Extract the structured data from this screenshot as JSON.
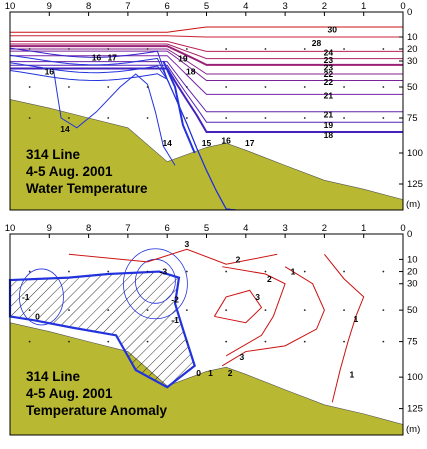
{
  "colors": {
    "terrain": "#b8b832",
    "cold": "#2233dd",
    "warm": "#cc1111",
    "frame": "#000000"
  },
  "chart_data": [
    {
      "type": "contour",
      "title_lines": [
        "314 Line",
        "4-5 Aug. 2001",
        "Water Temperature"
      ],
      "x_ticks": [
        "10",
        "9",
        "8",
        "7",
        "6",
        "5",
        "4",
        "3",
        "2",
        "1",
        "0"
      ],
      "x_tick_values": [
        10,
        9,
        8,
        7,
        6,
        5,
        4,
        3,
        2,
        1,
        0
      ],
      "y_ticks": [
        "0",
        "10",
        "20",
        "30",
        "50",
        "75",
        "100",
        "125"
      ],
      "y_tick_values": [
        0,
        10,
        20,
        30,
        50,
        75,
        100,
        125
      ],
      "y_unit": "(m)",
      "xlim": [
        10,
        0
      ],
      "ylim": [
        0,
        150
      ],
      "bottom_depth": [
        [
          10,
          60
        ],
        [
          9,
          67
        ],
        [
          8,
          75
        ],
        [
          7,
          82
        ],
        [
          6,
          107
        ],
        [
          5,
          96
        ],
        [
          4.5,
          93
        ],
        [
          4,
          98
        ],
        [
          3,
          110
        ],
        [
          2,
          122
        ],
        [
          1,
          130
        ],
        [
          0,
          140
        ]
      ],
      "contours": [
        {
          "level": "30",
          "depth": 6,
          "color": "#cc1111"
        },
        {
          "level": "28",
          "depth": 10,
          "color": "#cc2233"
        },
        {
          "level": "24",
          "depth": 22,
          "color": "#bb2255"
        },
        {
          "level": "23",
          "depth": 28,
          "color": "#aa2266"
        },
        {
          "level": "23",
          "depth": 33,
          "color": "#992277"
        },
        {
          "level": "22",
          "depth": 40,
          "color": "#882288"
        },
        {
          "level": "22",
          "depth": 45,
          "color": "#772299"
        },
        {
          "level": "21",
          "depth": 56,
          "color": "#7722aa"
        },
        {
          "level": "21",
          "depth": 70,
          "color": "#6622aa"
        },
        {
          "level": "19",
          "depth": 78,
          "color": "#5522bb"
        },
        {
          "level": "18",
          "depth": 85,
          "color": "#4422bb"
        },
        {
          "level": "17",
          "depth": 90,
          "color": "#3322cc"
        },
        {
          "level": "16",
          "depth": 95,
          "color": "#2233dd"
        },
        {
          "level": "15",
          "depth": 98,
          "color": "#2233dd"
        },
        {
          "level": "14",
          "depth": 100,
          "color": "#2233dd"
        }
      ],
      "labels": [
        {
          "text": "30",
          "x": 1.8,
          "y": 7
        },
        {
          "text": "28",
          "x": 2.2,
          "y": 15
        },
        {
          "text": "24",
          "x": 1.9,
          "y": 23
        },
        {
          "text": "23",
          "x": 1.9,
          "y": 29
        },
        {
          "text": "23",
          "x": 1.9,
          "y": 35
        },
        {
          "text": "22",
          "x": 1.9,
          "y": 40
        },
        {
          "text": "22",
          "x": 1.9,
          "y": 46
        },
        {
          "text": "21",
          "x": 1.9,
          "y": 57
        },
        {
          "text": "21",
          "x": 1.9,
          "y": 72
        },
        {
          "text": "19",
          "x": 1.9,
          "y": 80
        },
        {
          "text": "18",
          "x": 1.9,
          "y": 87
        },
        {
          "text": "18",
          "x": 5.4,
          "y": 38
        },
        {
          "text": "19",
          "x": 5.6,
          "y": 28
        },
        {
          "text": "17",
          "x": 7.4,
          "y": 27
        },
        {
          "text": "16",
          "x": 7.8,
          "y": 27
        },
        {
          "text": "16",
          "x": 9.0,
          "y": 38
        },
        {
          "text": "14",
          "x": 8.6,
          "y": 83
        },
        {
          "text": "14",
          "x": 6.0,
          "y": 93
        },
        {
          "text": "15",
          "x": 5.0,
          "y": 93
        },
        {
          "text": "16",
          "x": 4.5,
          "y": 91
        },
        {
          "text": "17",
          "x": 3.9,
          "y": 93
        }
      ]
    },
    {
      "type": "contour",
      "title_lines": [
        "314 Line",
        "4-5 Aug. 2001",
        "Temperature Anomaly"
      ],
      "x_ticks": [
        "10",
        "9",
        "8",
        "7",
        "6",
        "5",
        "4",
        "3",
        "2",
        "1",
        "0"
      ],
      "x_tick_values": [
        10,
        9,
        8,
        7,
        6,
        5,
        4,
        3,
        2,
        1,
        0
      ],
      "y_ticks": [
        "0",
        "10",
        "20",
        "30",
        "50",
        "75",
        "100",
        "125"
      ],
      "y_tick_values": [
        0,
        10,
        20,
        30,
        50,
        75,
        100,
        125
      ],
      "y_unit": "(m)",
      "xlim": [
        10,
        0
      ],
      "ylim": [
        0,
        150
      ],
      "bottom_depth": [
        [
          10,
          60
        ],
        [
          9,
          67
        ],
        [
          8,
          75
        ],
        [
          7,
          82
        ],
        [
          6,
          107
        ],
        [
          5,
          96
        ],
        [
          4.5,
          93
        ],
        [
          4,
          98
        ],
        [
          3,
          110
        ],
        [
          2,
          122
        ],
        [
          1,
          130
        ],
        [
          0,
          140
        ]
      ],
      "labels": [
        {
          "text": "3",
          "x": 5.5,
          "y": 4
        },
        {
          "text": "2",
          "x": 4.2,
          "y": 10
        },
        {
          "text": "1",
          "x": 2.8,
          "y": 20
        },
        {
          "text": "2",
          "x": 3.4,
          "y": 26
        },
        {
          "text": "3",
          "x": 3.7,
          "y": 40
        },
        {
          "text": "1",
          "x": 1.2,
          "y": 57
        },
        {
          "text": "3",
          "x": 4.1,
          "y": 86
        },
        {
          "text": "2",
          "x": 4.4,
          "y": 97
        },
        {
          "text": "1",
          "x": 4.9,
          "y": 97
        },
        {
          "text": "0",
          "x": 5.2,
          "y": 97
        },
        {
          "text": "1",
          "x": 1.3,
          "y": 98
        },
        {
          "text": "-3",
          "x": 6.1,
          "y": 20
        },
        {
          "text": "-2",
          "x": 5.8,
          "y": 42
        },
        {
          "text": "-1",
          "x": 5.8,
          "y": 58
        },
        {
          "text": "-1",
          "x": 9.6,
          "y": 40
        },
        {
          "text": "0",
          "x": 9.3,
          "y": 55
        }
      ]
    }
  ]
}
